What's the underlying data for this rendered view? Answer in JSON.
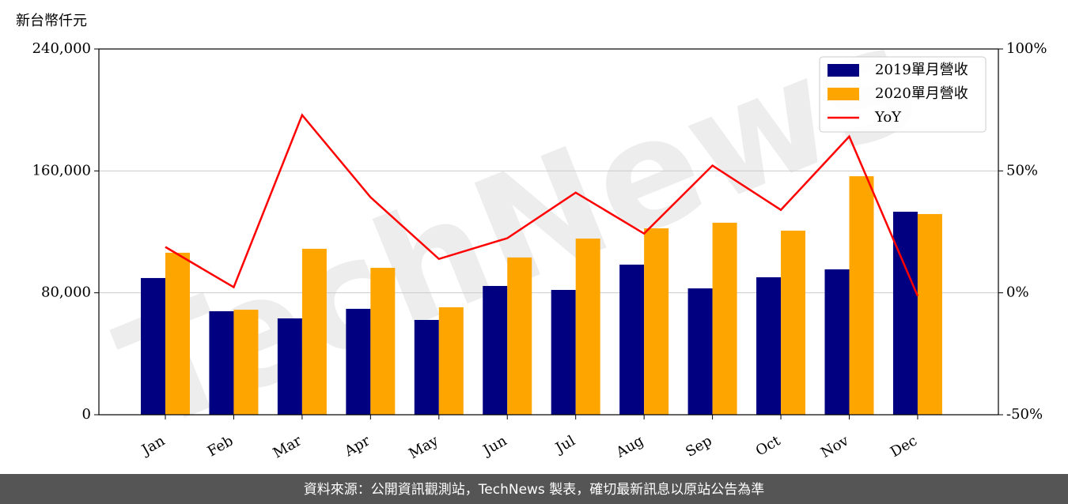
{
  "chart_data": {
    "type": "bar_line",
    "y_label": "新台幣仟元",
    "watermark": "TechNews",
    "footer": "資料來源：公開資訊觀測站，TechNews 製表，確切最新訊息以原站公告為準",
    "categories": [
      "Jan",
      "Feb",
      "Mar",
      "Apr",
      "May",
      "Jun",
      "Jul",
      "Aug",
      "Sep",
      "Oct",
      "Nov",
      "Dec"
    ],
    "series": [
      {
        "name": "2019單月營收",
        "color": "#000080",
        "kind": "bar",
        "values": [
          89700,
          67900,
          63200,
          69500,
          62200,
          84500,
          81900,
          98500,
          82900,
          90200,
          95400,
          133200
        ]
      },
      {
        "name": "2020單月營收",
        "color": "#ffa500",
        "kind": "bar",
        "values": [
          106300,
          68900,
          108900,
          96400,
          70500,
          103200,
          115600,
          122300,
          126000,
          120800,
          156500,
          131700
        ]
      },
      {
        "name": "YoY",
        "color": "#ff0000",
        "kind": "line",
        "axis": "y2",
        "values": [
          18.8,
          2.3,
          72.9,
          39.2,
          13.9,
          22.4,
          41.1,
          24.3,
          52.2,
          34.0,
          64.1,
          -1.3
        ]
      }
    ],
    "ylim": [
      0,
      240000
    ],
    "yticks": [
      0,
      {
        "value": 80000,
        "label": "80,000"
      },
      {
        "value": 160000,
        "label": "160,000"
      },
      {
        "value": 240000,
        "label": "240,000"
      }
    ],
    "y2lim": [
      -50,
      100
    ],
    "y2ticks": [
      {
        "value": -50,
        "label": "-50%"
      },
      {
        "value": 0,
        "label": "0%"
      },
      {
        "value": 50,
        "label": "50%"
      },
      {
        "value": 100,
        "label": "100%"
      }
    ],
    "grid": true,
    "legend": "upper right"
  }
}
